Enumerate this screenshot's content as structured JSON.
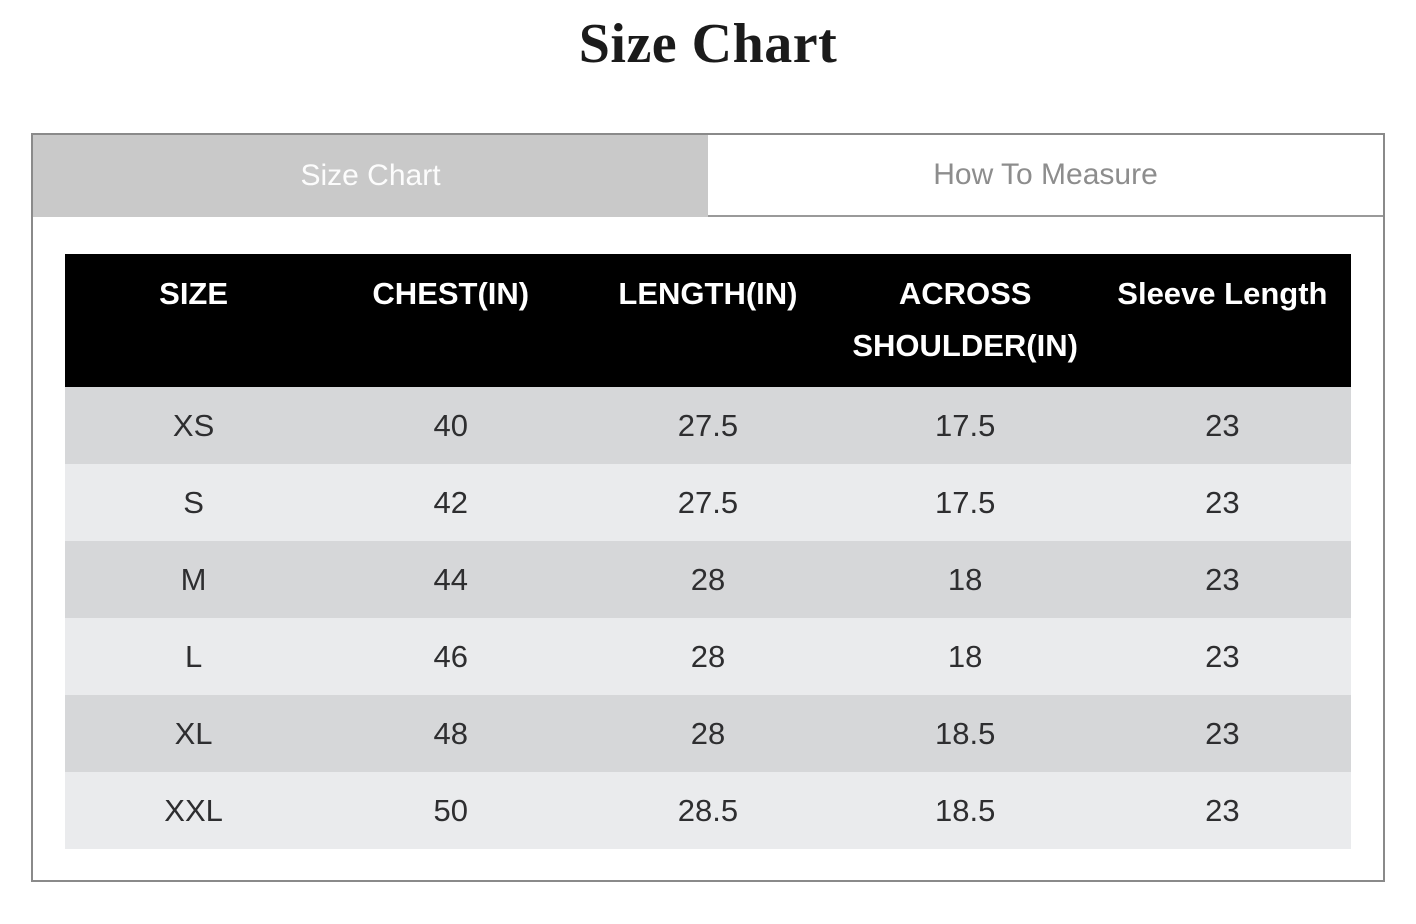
{
  "page_title": "Size Chart",
  "tabs": {
    "size_chart": {
      "label": "Size Chart",
      "active": true
    },
    "how_to_measure": {
      "label": "How To Measure",
      "active": false
    }
  },
  "size_table": {
    "headers": [
      "SIZE",
      "CHEST(IN)",
      "LENGTH(IN)",
      "ACROSS SHOULDER(IN)",
      "Sleeve Length"
    ],
    "rows": [
      [
        "XS",
        "40",
        "27.5",
        "17.5",
        "23"
      ],
      [
        "S",
        "42",
        "27.5",
        "17.5",
        "23"
      ],
      [
        "M",
        "44",
        "28",
        "18",
        "23"
      ],
      [
        "L",
        "46",
        "28",
        "18",
        "23"
      ],
      [
        "XL",
        "48",
        "28",
        "18.5",
        "23"
      ],
      [
        "XXL",
        "50",
        "28.5",
        "18.5",
        "23"
      ]
    ]
  },
  "colors": {
    "active_tab_bg": "#c9c9c9",
    "active_tab_text": "#fcfcfc",
    "inactive_tab_text": "#8d8d8d",
    "panel_border": "#8a8a8a",
    "table_header_bg": "#000000",
    "table_header_text": "#ffffff",
    "row_odd_bg": "#d6d7d9",
    "row_even_bg": "#eaebed",
    "row_text": "#2e2e30",
    "title_text": "#1b1b1b"
  }
}
